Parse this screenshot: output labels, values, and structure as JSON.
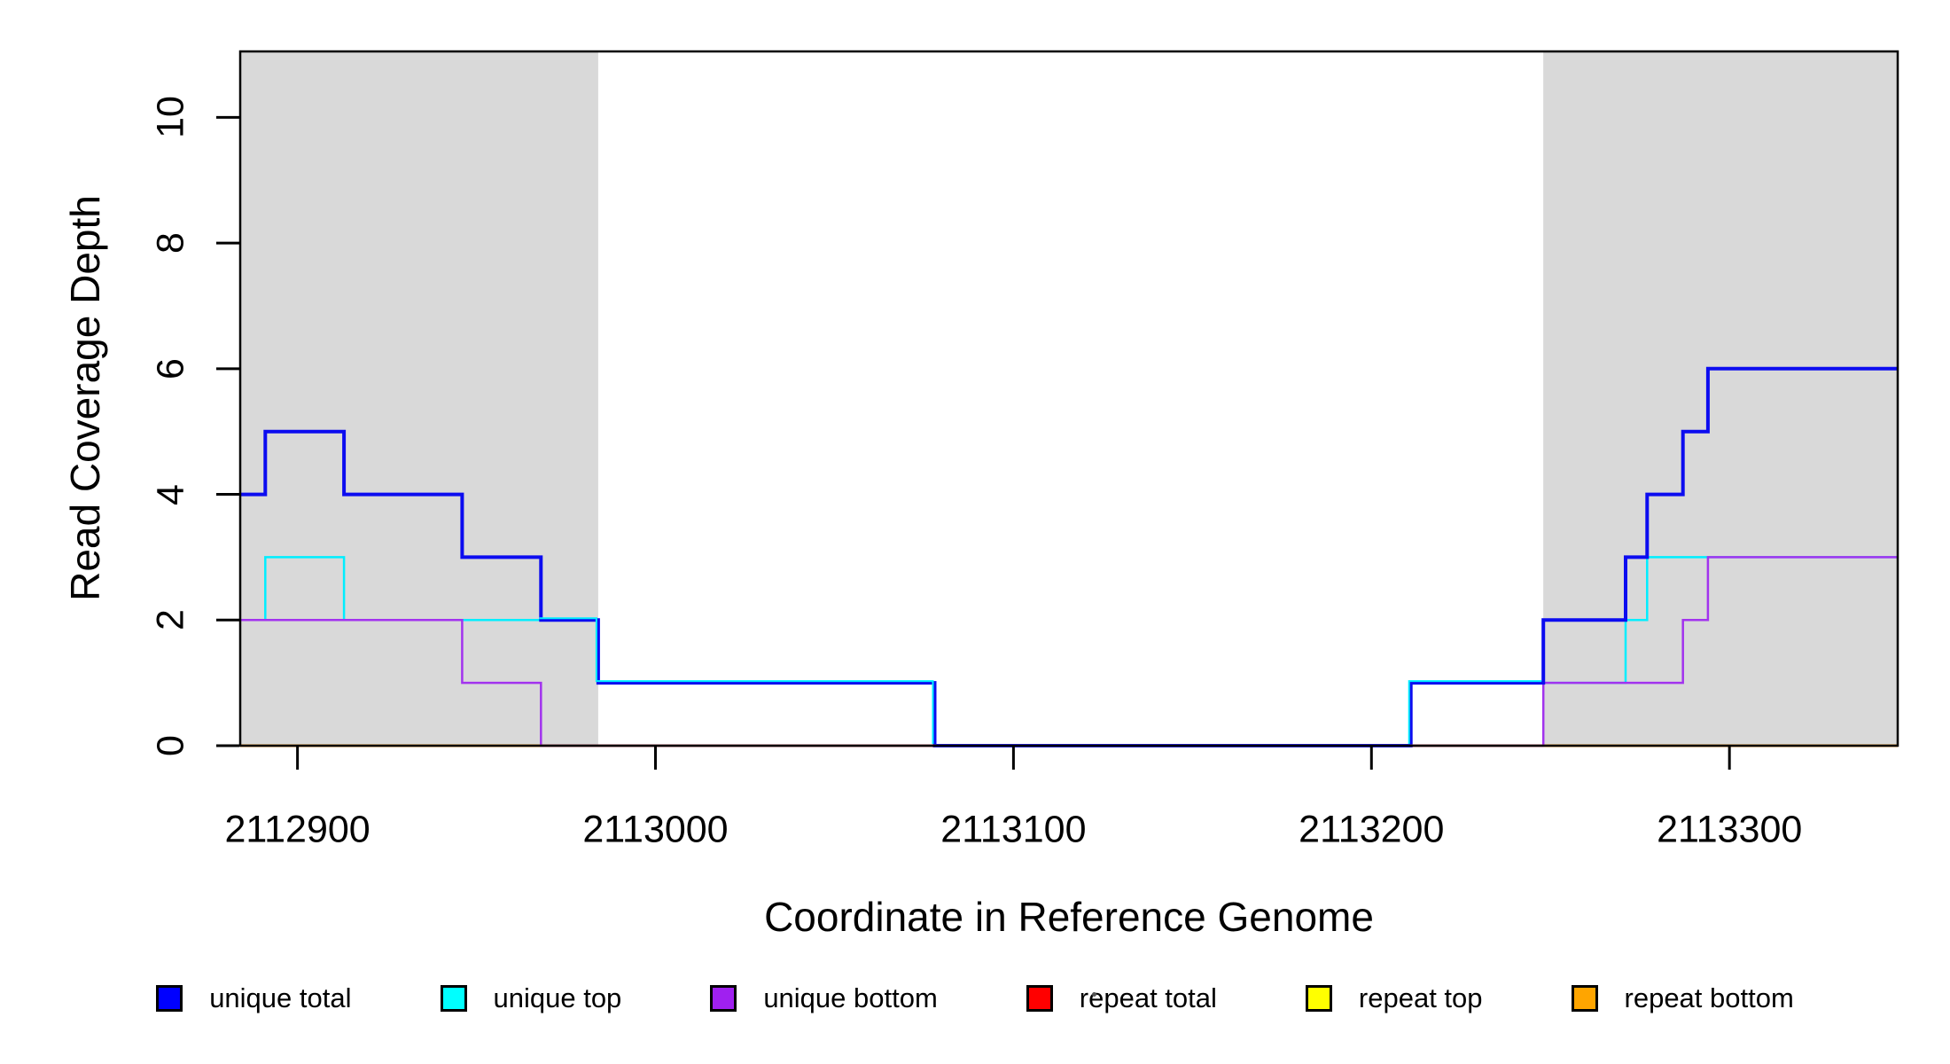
{
  "chart_data": {
    "type": "line",
    "subtype": "step-coverage-plot",
    "title": "",
    "xlabel": "Coordinate in Reference Genome",
    "ylabel": "Read Coverage Depth",
    "xlim": [
      2112884,
      2113347
    ],
    "ylim": [
      0,
      11.05
    ],
    "grid": false,
    "x_ticks": [
      2112900,
      2113000,
      2113100,
      2113200,
      2113300
    ],
    "x_tick_labels": [
      "2112900",
      "2113000",
      "2113100",
      "2113200",
      "2113300"
    ],
    "y_ticks": [
      0,
      2,
      4,
      6,
      8,
      10
    ],
    "y_tick_labels": [
      "0",
      "2",
      "4",
      "6",
      "8",
      "10"
    ],
    "repeat_region_color": "#D9D9D9",
    "repeat_regions": [
      [
        2112884,
        2112984
      ],
      [
        2113248,
        2113347
      ]
    ],
    "series": [
      {
        "name": "repeat top",
        "color": "#FFFF00",
        "lwd": 2.5,
        "steps": [
          [
            2112884,
            0
          ]
        ]
      },
      {
        "name": "repeat total",
        "color": "#EE0000",
        "lwd": 2.5,
        "steps": [
          [
            2112884,
            0
          ]
        ]
      },
      {
        "name": "repeat bottom",
        "color": "#F58900",
        "lwd": 3,
        "steps": [
          [
            2112884,
            0
          ]
        ]
      },
      {
        "name": "unique top",
        "color": "#00EEFF",
        "lwd": 2.5,
        "steps": [
          [
            2112884,
            2
          ],
          [
            2112891,
            3
          ],
          [
            2112913,
            2
          ],
          [
            2112984,
            1
          ],
          [
            2113078,
            0
          ],
          [
            2113211,
            1
          ],
          [
            2113271,
            2
          ],
          [
            2113277,
            3
          ]
        ]
      },
      {
        "name": "unique bottom",
        "color": "#A233EE",
        "lwd": 2.5,
        "steps": [
          [
            2112884,
            2
          ],
          [
            2112946,
            1
          ],
          [
            2112968,
            0
          ],
          [
            2113248,
            1
          ],
          [
            2113287,
            2
          ],
          [
            2113294,
            3
          ]
        ]
      },
      {
        "name": "unique total",
        "color": "#0C0CF0",
        "lwd": 4,
        "steps": [
          [
            2112884,
            4
          ],
          [
            2112891,
            5
          ],
          [
            2112913,
            4
          ],
          [
            2112946,
            3
          ],
          [
            2112968,
            2
          ],
          [
            2112984,
            1
          ],
          [
            2113078,
            0
          ],
          [
            2113211,
            1
          ],
          [
            2113248,
            2
          ],
          [
            2113271,
            3
          ],
          [
            2113277,
            4
          ],
          [
            2113287,
            5
          ],
          [
            2113294,
            6
          ]
        ]
      }
    ],
    "overplot_baseline_segments": [
      {
        "x1": 2112968,
        "x2": 2113078,
        "color": "#C65365"
      },
      {
        "x1": 2113078,
        "x2": 2113211,
        "color": "#5A50DC"
      },
      {
        "x1": 2113211,
        "x2": 2113248,
        "color": "#C65365"
      }
    ],
    "cyan_highlight_paths": [
      {
        "steps": [
          [
            2112968,
            2
          ],
          [
            2112984,
            1
          ],
          [
            2113078,
            0
          ]
        ],
        "end": 2113078
      },
      {
        "steps": [
          [
            2113211,
            0
          ],
          [
            2113211,
            1
          ]
        ],
        "end": 2113248
      }
    ],
    "legend_position": "bottom"
  },
  "legend": {
    "items": [
      {
        "label": "unique total",
        "color": "#0000FF"
      },
      {
        "label": "unique top",
        "color": "#00FFFF"
      },
      {
        "label": "unique bottom",
        "color": "#A020F0"
      },
      {
        "label": "repeat total",
        "color": "#FF0000"
      },
      {
        "label": "repeat top",
        "color": "#FFFF00"
      },
      {
        "label": "repeat bottom",
        "color": "#FFA500"
      }
    ]
  },
  "axes": {
    "x_title": "Coordinate in Reference Genome",
    "y_title": "Read Coverage Depth"
  }
}
